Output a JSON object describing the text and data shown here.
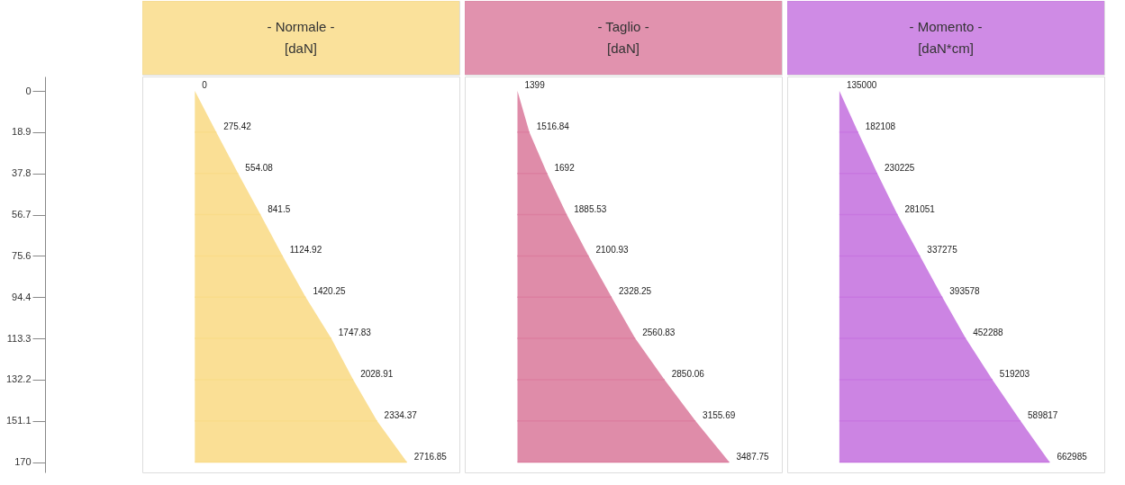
{
  "chart_data": [
    {
      "type": "area",
      "orientation": "horizontal",
      "title": "- Normale -",
      "subtitle": "[daN]",
      "categories": [
        "0",
        "18.9",
        "37.8",
        "56.7",
        "75.6",
        "94.4",
        "113.3",
        "132.2",
        "151.1",
        "170"
      ],
      "xlim": [
        -673,
        3389
      ],
      "data_labels": true,
      "series": [
        {
          "color": "#f9dc8a",
          "values": [
            0,
            275.42,
            554.08,
            841.5,
            1124.92,
            1420.25,
            1747.83,
            2028.91,
            2334.37,
            2716.85
          ]
        }
      ]
    },
    {
      "type": "area",
      "orientation": "horizontal",
      "title": "- Taglio -",
      "subtitle": "[daN]",
      "categories": [
        "0",
        "18.9",
        "37.8",
        "56.7",
        "75.6",
        "94.4",
        "113.3",
        "132.2",
        "151.1",
        "170"
      ],
      "xlim": [
        879,
        4008
      ],
      "tick_labels": false,
      "data_labels": true,
      "series": [
        {
          "color": "#dc7fa0",
          "values": [
            1399,
            1516.84,
            1692,
            1885.53,
            2100.93,
            2328.25,
            2560.83,
            2850.06,
            3155.69,
            3487.75
          ]
        }
      ]
    },
    {
      "type": "area",
      "orientation": "horizontal",
      "title": "- Momento -",
      "subtitle": "[daN*cm]",
      "categories": [
        "0",
        "18.9",
        "37.8",
        "56.7",
        "75.6",
        "94.4",
        "113.3",
        "132.2",
        "151.1",
        "170"
      ],
      "xlim": [
        4080,
        800000
      ],
      "tick_labels": false,
      "data_labels": true,
      "series": [
        {
          "color": "#c777e0",
          "values": [
            135000,
            182108,
            230225,
            281051,
            337275,
            393578,
            452288,
            519203,
            589817,
            662985
          ]
        }
      ]
    }
  ]
}
